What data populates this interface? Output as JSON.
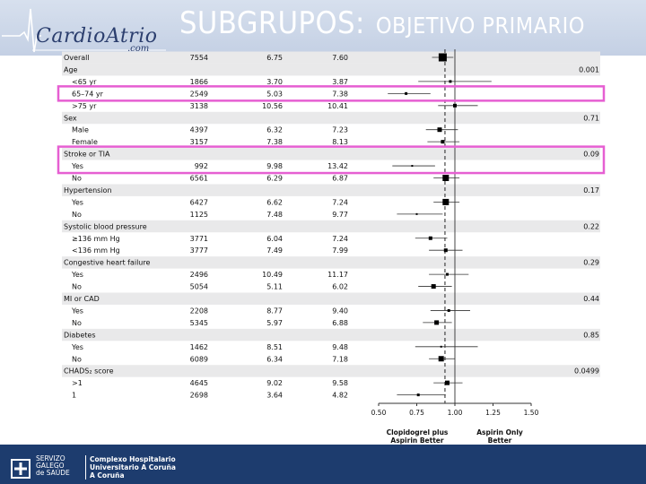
{
  "header": {
    "logo": "CardioAtrio",
    "logo_sub": ".com",
    "title": "SUBGRUPOS:",
    "subtitle": "OBJETIVO PRIMARIO"
  },
  "footer": {
    "org_lines": [
      "SERVIZO",
      "GALEGO",
      "de SAÚDE"
    ],
    "hospital_lines": [
      "Complexo Hospitalario",
      "Universitario A Coruña",
      "A Coruña"
    ]
  },
  "colors": {
    "header_bg": "#c4d0e4",
    "footer_bg": "#1d3c6e",
    "highlight": "#e65fd2",
    "marker": "#000000"
  },
  "chart_data": {
    "type": "forest",
    "x_ticks": [
      "0.50",
      "0.75",
      "1.00",
      "1.25",
      "1.50"
    ],
    "xlim": [
      0.5,
      1.5
    ],
    "overall_line": 0.935,
    "x_labels": {
      "left": [
        "Clopidogrel plus",
        "Aspirin Better"
      ],
      "right": [
        "Aspirin Only",
        "Better"
      ]
    },
    "rows": [
      {
        "label": "Overall",
        "n": "7554",
        "c1": "6.75",
        "c2": "7.60",
        "p": "",
        "hr": 0.92,
        "lo": 0.85,
        "hi": 0.99,
        "size": 9,
        "indent": false
      },
      {
        "label": "Age",
        "n": "",
        "c1": "",
        "c2": "",
        "p": "0.001",
        "hr": null,
        "indent": false
      },
      {
        "label": "<65 yr",
        "n": "1866",
        "c1": "3.70",
        "c2": "3.87",
        "p": "",
        "hr": 0.97,
        "lo": 0.76,
        "hi": 1.24,
        "size": 3,
        "indent": true
      },
      {
        "label": "65–74 yr",
        "n": "2549",
        "c1": "5.03",
        "c2": "7.38",
        "p": "",
        "hr": 0.68,
        "lo": 0.56,
        "hi": 0.84,
        "size": 3,
        "indent": true
      },
      {
        "label": ">75 yr",
        "n": "3138",
        "c1": "10.56",
        "c2": "10.41",
        "p": "",
        "hr": 1.0,
        "lo": 0.89,
        "hi": 1.15,
        "size": 4,
        "indent": true
      },
      {
        "label": "Sex",
        "n": "",
        "c1": "",
        "c2": "",
        "p": "0.71",
        "hr": null,
        "indent": false
      },
      {
        "label": "Male",
        "n": "4397",
        "c1": "6.32",
        "c2": "7.23",
        "p": "",
        "hr": 0.9,
        "lo": 0.81,
        "hi": 1.02,
        "size": 5,
        "indent": true
      },
      {
        "label": "Female",
        "n": "3157",
        "c1": "7.38",
        "c2": "8.13",
        "p": "",
        "hr": 0.92,
        "lo": 0.82,
        "hi": 1.03,
        "size": 4,
        "indent": true
      },
      {
        "label": "Stroke or TIA",
        "n": "",
        "c1": "",
        "c2": "",
        "p": "0.09",
        "hr": null,
        "indent": false
      },
      {
        "label": "Yes",
        "n": "992",
        "c1": "9.98",
        "c2": "13.42",
        "p": "",
        "hr": 0.72,
        "lo": 0.59,
        "hi": 0.87,
        "size": 2,
        "indent": true
      },
      {
        "label": "No",
        "n": "6561",
        "c1": "6.29",
        "c2": "6.87",
        "p": "",
        "hr": 0.94,
        "lo": 0.86,
        "hi": 1.03,
        "size": 7,
        "indent": true
      },
      {
        "label": "Hypertension",
        "n": "",
        "c1": "",
        "c2": "",
        "p": "0.17",
        "hr": null,
        "indent": false
      },
      {
        "label": "Yes",
        "n": "6427",
        "c1": "6.62",
        "c2": "7.24",
        "p": "",
        "hr": 0.94,
        "lo": 0.86,
        "hi": 1.03,
        "size": 7,
        "indent": true
      },
      {
        "label": "No",
        "n": "1125",
        "c1": "7.48",
        "c2": "9.77",
        "p": "",
        "hr": 0.75,
        "lo": 0.62,
        "hi": 0.92,
        "size": 2,
        "indent": true
      },
      {
        "label": "Systolic blood pressure",
        "n": "",
        "c1": "",
        "c2": "",
        "p": "0.22",
        "hr": null,
        "indent": false
      },
      {
        "label": "≥136 mm Hg",
        "n": "3771",
        "c1": "6.04",
        "c2": "7.24",
        "p": "",
        "hr": 0.84,
        "lo": 0.74,
        "hi": 0.95,
        "size": 4,
        "indent": true
      },
      {
        "label": "<136 mm Hg",
        "n": "3777",
        "c1": "7.49",
        "c2": "7.99",
        "p": "",
        "hr": 0.94,
        "lo": 0.83,
        "hi": 1.05,
        "size": 4,
        "indent": true
      },
      {
        "label": "Congestive heart failure",
        "n": "",
        "c1": "",
        "c2": "",
        "p": "0.29",
        "hr": null,
        "indent": false
      },
      {
        "label": "Yes",
        "n": "2496",
        "c1": "10.49",
        "c2": "11.17",
        "p": "",
        "hr": 0.95,
        "lo": 0.83,
        "hi": 1.09,
        "size": 3,
        "indent": true
      },
      {
        "label": "No",
        "n": "5054",
        "c1": "5.11",
        "c2": "6.02",
        "p": "",
        "hr": 0.86,
        "lo": 0.76,
        "hi": 0.98,
        "size": 5,
        "indent": true
      },
      {
        "label": "MI or CAD",
        "n": "",
        "c1": "",
        "c2": "",
        "p": "0.44",
        "hr": null,
        "indent": false
      },
      {
        "label": "Yes",
        "n": "2208",
        "c1": "8.77",
        "c2": "9.40",
        "p": "",
        "hr": 0.96,
        "lo": 0.84,
        "hi": 1.1,
        "size": 3,
        "indent": true
      },
      {
        "label": "No",
        "n": "5345",
        "c1": "5.97",
        "c2": "6.88",
        "p": "",
        "hr": 0.88,
        "lo": 0.79,
        "hi": 0.98,
        "size": 5,
        "indent": true
      },
      {
        "label": "Diabetes",
        "n": "",
        "c1": "",
        "c2": "",
        "p": "0.85",
        "hr": null,
        "indent": false
      },
      {
        "label": "Yes",
        "n": "1462",
        "c1": "8.51",
        "c2": "9.48",
        "p": "",
        "hr": 0.91,
        "lo": 0.74,
        "hi": 1.15,
        "size": 2,
        "indent": true
      },
      {
        "label": "No",
        "n": "6089",
        "c1": "6.34",
        "c2": "7.18",
        "p": "",
        "hr": 0.91,
        "lo": 0.83,
        "hi": 1.0,
        "size": 6,
        "indent": true
      },
      {
        "label": "CHADS₂ score",
        "n": "",
        "c1": "",
        "c2": "",
        "p": "0.0499",
        "hr": null,
        "indent": false
      },
      {
        "label": ">1",
        "n": "4645",
        "c1": "9.02",
        "c2": "9.58",
        "p": "",
        "hr": 0.95,
        "lo": 0.86,
        "hi": 1.05,
        "size": 5,
        "indent": true
      },
      {
        "label": "1",
        "n": "2698",
        "c1": "3.64",
        "c2": "4.82",
        "p": "",
        "hr": 0.76,
        "lo": 0.62,
        "hi": 0.94,
        "size": 3,
        "indent": true
      }
    ],
    "highlighted_rows": [
      3,
      8,
      9
    ]
  }
}
